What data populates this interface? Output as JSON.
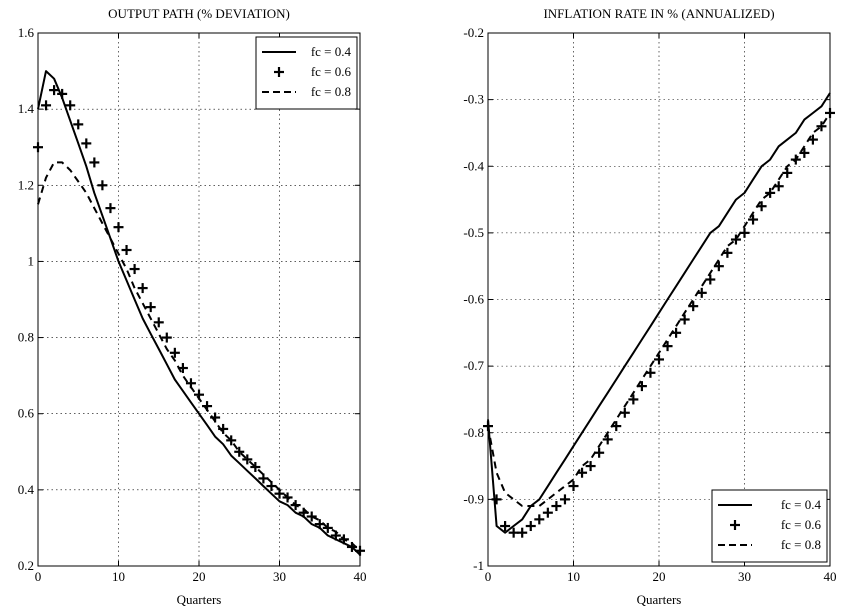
{
  "chart_data": [
    {
      "type": "line",
      "title": "OUTPUT PATH (% DEVIATION)",
      "xlabel": "Quarters",
      "ylabel": "",
      "xlim": [
        0,
        40
      ],
      "ylim": [
        0.2,
        1.6
      ],
      "xticks": [
        0,
        10,
        20,
        30,
        40
      ],
      "yticks": [
        0.2,
        0.4,
        0.6,
        0.8,
        1,
        1.2,
        1.4,
        1.6
      ],
      "ytick_labels": [
        "0.2",
        "0.4",
        "0.6",
        "0.8",
        "1",
        "1.2",
        "1.4",
        "1.6"
      ],
      "grid": true,
      "legend_position": "top-right",
      "series": [
        {
          "name": "fc = 0.4",
          "style": "solid",
          "x": [
            0,
            1,
            2,
            3,
            4,
            5,
            6,
            7,
            8,
            9,
            10,
            11,
            12,
            13,
            14,
            15,
            16,
            17,
            18,
            19,
            20,
            21,
            22,
            23,
            24,
            25,
            26,
            27,
            28,
            29,
            30,
            31,
            32,
            33,
            34,
            35,
            36,
            37,
            38,
            39,
            40
          ],
          "values": [
            1.4,
            1.5,
            1.48,
            1.43,
            1.37,
            1.31,
            1.25,
            1.18,
            1.12,
            1.06,
            1.0,
            0.95,
            0.9,
            0.85,
            0.81,
            0.77,
            0.73,
            0.69,
            0.66,
            0.63,
            0.6,
            0.57,
            0.54,
            0.52,
            0.49,
            0.47,
            0.45,
            0.43,
            0.41,
            0.39,
            0.37,
            0.36,
            0.34,
            0.33,
            0.31,
            0.3,
            0.28,
            0.27,
            0.26,
            0.25,
            0.23
          ]
        },
        {
          "name": "fc = 0.6",
          "style": "plus",
          "x": [
            0,
            1,
            2,
            3,
            4,
            5,
            6,
            7,
            8,
            9,
            10,
            11,
            12,
            13,
            14,
            15,
            16,
            17,
            18,
            19,
            20,
            21,
            22,
            23,
            24,
            25,
            26,
            27,
            28,
            29,
            30,
            31,
            32,
            33,
            34,
            35,
            36,
            37,
            38,
            39,
            40
          ],
          "values": [
            1.3,
            1.41,
            1.45,
            1.44,
            1.41,
            1.36,
            1.31,
            1.26,
            1.2,
            1.14,
            1.09,
            1.03,
            0.98,
            0.93,
            0.88,
            0.84,
            0.8,
            0.76,
            0.72,
            0.68,
            0.65,
            0.62,
            0.59,
            0.56,
            0.53,
            0.5,
            0.48,
            0.46,
            0.43,
            0.41,
            0.39,
            0.38,
            0.36,
            0.34,
            0.33,
            0.31,
            0.3,
            0.28,
            0.27,
            0.25,
            0.24
          ]
        },
        {
          "name": "fc = 0.8",
          "style": "dashed",
          "x": [
            0,
            1,
            2,
            3,
            4,
            5,
            6,
            7,
            8,
            9,
            10,
            11,
            12,
            13,
            14,
            15,
            16,
            17,
            18,
            19,
            20,
            21,
            22,
            23,
            24,
            25,
            26,
            27,
            28,
            29,
            30,
            31,
            32,
            33,
            34,
            35,
            36,
            37,
            38,
            39,
            40
          ],
          "values": [
            1.15,
            1.22,
            1.26,
            1.26,
            1.24,
            1.21,
            1.18,
            1.14,
            1.1,
            1.06,
            1.02,
            0.98,
            0.93,
            0.89,
            0.85,
            0.81,
            0.77,
            0.74,
            0.7,
            0.67,
            0.64,
            0.61,
            0.58,
            0.55,
            0.53,
            0.5,
            0.48,
            0.46,
            0.44,
            0.42,
            0.4,
            0.38,
            0.36,
            0.35,
            0.33,
            0.32,
            0.3,
            0.29,
            0.27,
            0.26,
            0.24
          ]
        }
      ]
    },
    {
      "type": "line",
      "title": "INFLATION RATE IN % (ANNUALIZED)",
      "xlabel": "Quarters",
      "ylabel": "",
      "xlim": [
        0,
        40
      ],
      "ylim": [
        -1,
        -0.2
      ],
      "xticks": [
        0,
        10,
        20,
        30,
        40
      ],
      "yticks": [
        -1,
        -0.9,
        -0.8,
        -0.7,
        -0.6,
        -0.5,
        -0.4,
        -0.3,
        -0.2
      ],
      "ytick_labels": [
        "-1",
        "-0.9",
        "-0.8",
        "-0.7",
        "-0.6",
        "-0.5",
        "-0.4",
        "-0.3",
        "-0.2"
      ],
      "grid": true,
      "legend_position": "bottom-right",
      "series": [
        {
          "name": "fc = 0.4",
          "style": "solid",
          "x": [
            0,
            1,
            2,
            3,
            4,
            5,
            6,
            7,
            8,
            9,
            10,
            11,
            12,
            13,
            14,
            15,
            16,
            17,
            18,
            19,
            20,
            21,
            22,
            23,
            24,
            25,
            26,
            27,
            28,
            29,
            30,
            31,
            32,
            33,
            34,
            35,
            36,
            37,
            38,
            39,
            40
          ],
          "values": [
            -0.78,
            -0.94,
            -0.95,
            -0.94,
            -0.93,
            -0.91,
            -0.9,
            -0.88,
            -0.86,
            -0.84,
            -0.82,
            -0.8,
            -0.78,
            -0.76,
            -0.74,
            -0.72,
            -0.7,
            -0.68,
            -0.66,
            -0.64,
            -0.62,
            -0.6,
            -0.58,
            -0.56,
            -0.54,
            -0.52,
            -0.5,
            -0.49,
            -0.47,
            -0.45,
            -0.44,
            -0.42,
            -0.4,
            -0.39,
            -0.37,
            -0.36,
            -0.35,
            -0.33,
            -0.32,
            -0.31,
            -0.29
          ]
        },
        {
          "name": "fc = 0.6",
          "style": "plus",
          "x": [
            0,
            1,
            2,
            3,
            4,
            5,
            6,
            7,
            8,
            9,
            10,
            11,
            12,
            13,
            14,
            15,
            16,
            17,
            18,
            19,
            20,
            21,
            22,
            23,
            24,
            25,
            26,
            27,
            28,
            29,
            30,
            31,
            32,
            33,
            34,
            35,
            36,
            37,
            38,
            39,
            40
          ],
          "values": [
            -0.79,
            -0.9,
            -0.94,
            -0.95,
            -0.95,
            -0.94,
            -0.93,
            -0.92,
            -0.91,
            -0.9,
            -0.88,
            -0.86,
            -0.85,
            -0.83,
            -0.81,
            -0.79,
            -0.77,
            -0.75,
            -0.73,
            -0.71,
            -0.69,
            -0.67,
            -0.65,
            -0.63,
            -0.61,
            -0.59,
            -0.57,
            -0.55,
            -0.53,
            -0.51,
            -0.5,
            -0.48,
            -0.46,
            -0.44,
            -0.43,
            -0.41,
            -0.39,
            -0.38,
            -0.36,
            -0.34,
            -0.32
          ]
        },
        {
          "name": "fc = 0.8",
          "style": "dashed",
          "x": [
            0,
            1,
            2,
            3,
            4,
            5,
            6,
            7,
            8,
            9,
            10,
            11,
            12,
            13,
            14,
            15,
            16,
            17,
            18,
            19,
            20,
            21,
            22,
            23,
            24,
            25,
            26,
            27,
            28,
            29,
            30,
            31,
            32,
            33,
            34,
            35,
            36,
            37,
            38,
            39,
            40
          ],
          "values": [
            -0.79,
            -0.86,
            -0.89,
            -0.9,
            -0.91,
            -0.91,
            -0.91,
            -0.9,
            -0.89,
            -0.88,
            -0.87,
            -0.85,
            -0.84,
            -0.82,
            -0.8,
            -0.78,
            -0.76,
            -0.74,
            -0.72,
            -0.7,
            -0.68,
            -0.66,
            -0.64,
            -0.62,
            -0.6,
            -0.58,
            -0.56,
            -0.54,
            -0.52,
            -0.51,
            -0.49,
            -0.47,
            -0.45,
            -0.44,
            -0.42,
            -0.4,
            -0.39,
            -0.37,
            -0.35,
            -0.34,
            -0.32
          ]
        }
      ]
    }
  ]
}
